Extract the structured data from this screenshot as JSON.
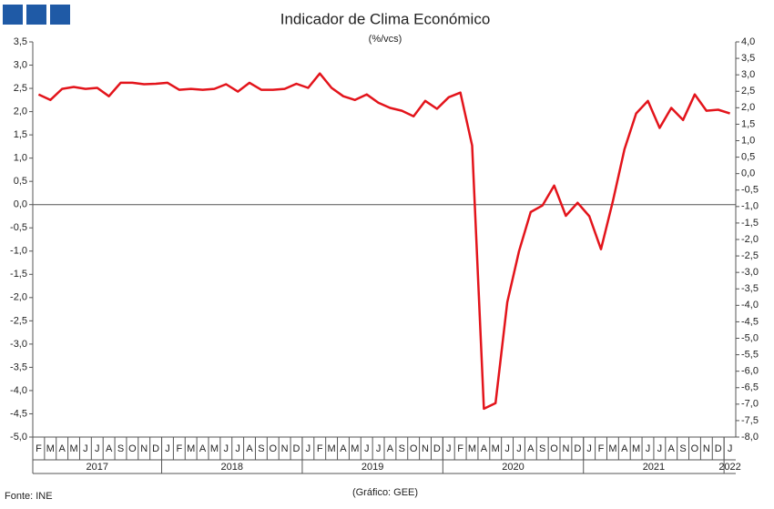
{
  "chart_data": {
    "type": "line",
    "title": "Indicador de Clima Económico",
    "subtitle": "(%/vcs)",
    "source": "Fonte: INE",
    "credit": "(Gráfico: GEE)",
    "categories": [
      "F",
      "M",
      "A",
      "M",
      "J",
      "J",
      "A",
      "S",
      "O",
      "N",
      "D",
      "J",
      "F",
      "M",
      "A",
      "M",
      "J",
      "J",
      "A",
      "S",
      "O",
      "N",
      "D",
      "J",
      "F",
      "M",
      "A",
      "M",
      "J",
      "J",
      "A",
      "S",
      "O",
      "N",
      "D",
      "J",
      "F",
      "M",
      "A",
      "M",
      "J",
      "J",
      "A",
      "S",
      "O",
      "N",
      "D",
      "J",
      "F",
      "M",
      "A",
      "M",
      "J",
      "J",
      "A",
      "S",
      "O",
      "N",
      "D",
      "J"
    ],
    "groups": [
      {
        "label": "2017",
        "count": 11
      },
      {
        "label": "2018",
        "count": 12
      },
      {
        "label": "2019",
        "count": 12
      },
      {
        "label": "2020",
        "count": 12
      },
      {
        "label": "2021",
        "count": 12
      },
      {
        "label": "2022",
        "count": 1
      }
    ],
    "values": [
      2.37,
      2.25,
      2.49,
      2.53,
      2.49,
      2.51,
      2.33,
      2.62,
      2.62,
      2.59,
      2.6,
      2.62,
      2.47,
      2.49,
      2.47,
      2.49,
      2.59,
      2.43,
      2.62,
      2.47,
      2.47,
      2.49,
      2.6,
      2.51,
      2.82,
      2.51,
      2.33,
      2.25,
      2.37,
      2.19,
      2.08,
      2.02,
      1.9,
      2.23,
      2.06,
      2.31,
      2.41,
      1.27,
      -4.39,
      -4.27,
      -2.1,
      -1.0,
      -0.16,
      -0.02,
      0.41,
      -0.24,
      0.04,
      -0.25,
      -0.96,
      0.06,
      1.19,
      1.96,
      2.23,
      1.65,
      2.08,
      1.82,
      2.37,
      2.02,
      2.04,
      1.96
    ],
    "color": "#e3141b",
    "ylim": [
      -5,
      3.5
    ],
    "yticks": [
      {
        "value": -5,
        "label": "-5,0"
      },
      {
        "value": -4.5,
        "label": "-4,5"
      },
      {
        "value": -4,
        "label": "-4,0"
      },
      {
        "value": -3.5,
        "label": "-3,5"
      },
      {
        "value": -3,
        "label": "-3,0"
      },
      {
        "value": -2.5,
        "label": "-2,5"
      },
      {
        "value": -2,
        "label": "-2,0"
      },
      {
        "value": -1.5,
        "label": "-1,5"
      },
      {
        "value": -1,
        "label": "-1,0"
      },
      {
        "value": -0.5,
        "label": "-0,5"
      },
      {
        "value": 0,
        "label": "0,0"
      },
      {
        "value": 0.5,
        "label": "0,5"
      },
      {
        "value": 1,
        "label": "1,0"
      },
      {
        "value": 1.5,
        "label": "1,5"
      },
      {
        "value": 2,
        "label": "2,0"
      },
      {
        "value": 2.5,
        "label": "2,5"
      },
      {
        "value": 3,
        "label": "3,0"
      },
      {
        "value": 3.5,
        "label": "3,5"
      }
    ],
    "y2lim": [
      -8,
      4
    ],
    "y2ticks": [
      {
        "value": -8,
        "label": "-8,0"
      },
      {
        "value": -7.5,
        "label": "-7,5"
      },
      {
        "value": -7,
        "label": "-7,0"
      },
      {
        "value": -6.5,
        "label": "-6,5"
      },
      {
        "value": -6,
        "label": "-6,0"
      },
      {
        "value": -5.5,
        "label": "-5,5"
      },
      {
        "value": -5,
        "label": "-5,0"
      },
      {
        "value": -4.5,
        "label": "-4,5"
      },
      {
        "value": -4,
        "label": "-4,0"
      },
      {
        "value": -3.5,
        "label": "-3,5"
      },
      {
        "value": -3,
        "label": "-3,0"
      },
      {
        "value": -2.5,
        "label": "-2,5"
      },
      {
        "value": -2,
        "label": "-2,0"
      },
      {
        "value": -1.5,
        "label": "-1,5"
      },
      {
        "value": -1,
        "label": "-1,0"
      },
      {
        "value": -0.5,
        "label": "-0,5"
      },
      {
        "value": 0,
        "label": "0,0"
      },
      {
        "value": 0.5,
        "label": "0,5"
      },
      {
        "value": 1,
        "label": "1,0"
      },
      {
        "value": 1.5,
        "label": "1,5"
      },
      {
        "value": 2,
        "label": "2,0"
      },
      {
        "value": 2.5,
        "label": "2,5"
      },
      {
        "value": 3,
        "label": "3,0"
      },
      {
        "value": 3.5,
        "label": "3,5"
      },
      {
        "value": 4,
        "label": "4,0"
      }
    ],
    "grid": false
  }
}
